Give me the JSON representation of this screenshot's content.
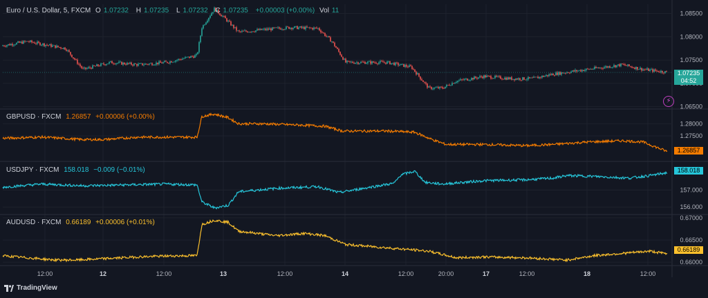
{
  "panes": [
    {
      "id": "main",
      "title": "Euro / U.S. Dollar, 5, FXCM",
      "o_label": "O",
      "o": "1.07232",
      "h_label": "H",
      "h": "1.07235",
      "l_label": "L",
      "l": "1.07232",
      "c_label": "C",
      "c": "1.07235",
      "change": "+0.00003 (+0.00%)",
      "vol_label": "Vol",
      "vol": "11",
      "last_price": "1.07235",
      "countdown": "04:52",
      "color": "#26a69a"
    },
    {
      "id": "gbpusd",
      "title": "GBPUSD · FXCM",
      "value": "1.26857",
      "change": "+0.00006 (+0.00%)",
      "last_price": "1.26857",
      "color": "#f57c00"
    },
    {
      "id": "usdjpy",
      "title": "USDJPY · FXCM",
      "value": "158.018",
      "change": "−0.009 (−0.01%)",
      "last_price": "158.018",
      "color": "#26c6da"
    },
    {
      "id": "audusd",
      "title": "AUDUSD · FXCM",
      "value": "0.66189",
      "change": "+0.00006 (+0.01%)",
      "last_price": "0.66189",
      "color": "#fbc02d"
    }
  ],
  "brand": "TradingView",
  "chart_data": [
    {
      "type": "candlestick",
      "pane": "main",
      "series_name": "EURUSD",
      "y_ticks": [
        1.085,
        1.08,
        1.075,
        1.07,
        1.065
      ],
      "y_tick_labels": [
        "1.08500",
        "1.08000",
        "1.07500",
        "1.07000",
        "1.06500"
      ],
      "ylim": [
        1.0645,
        1.087
      ],
      "keypoints": [
        [
          0,
          1.078
        ],
        [
          40,
          1.079
        ],
        [
          95,
          1.0775
        ],
        [
          120,
          1.073
        ],
        [
          160,
          1.0745
        ],
        [
          200,
          1.074
        ],
        [
          240,
          1.0745
        ],
        [
          285,
          1.076
        ],
        [
          292,
          1.082
        ],
        [
          310,
          1.086
        ],
        [
          325,
          1.084
        ],
        [
          345,
          1.081
        ],
        [
          380,
          1.0815
        ],
        [
          420,
          1.082
        ],
        [
          460,
          1.0818
        ],
        [
          480,
          1.079
        ],
        [
          500,
          1.0745
        ],
        [
          560,
          1.0745
        ],
        [
          595,
          1.0735
        ],
        [
          620,
          1.069
        ],
        [
          640,
          1.069
        ],
        [
          660,
          1.0705
        ],
        [
          700,
          1.0715
        ],
        [
          740,
          1.071
        ],
        [
          770,
          1.071
        ],
        [
          800,
          1.072
        ],
        [
          850,
          1.073
        ],
        [
          900,
          1.074
        ],
        [
          930,
          1.073
        ],
        [
          965,
          1.0724
        ]
      ]
    },
    {
      "type": "line",
      "pane": "gbpusd",
      "series_name": "GBPUSD",
      "y_ticks": [
        1.28,
        1.275
      ],
      "y_tick_labels": [
        "1.28000",
        "1.27500"
      ],
      "ylim": [
        1.2648,
        1.2855
      ],
      "keypoints": [
        [
          0,
          1.274
        ],
        [
          60,
          1.2745
        ],
        [
          120,
          1.2735
        ],
        [
          150,
          1.2735
        ],
        [
          200,
          1.2745
        ],
        [
          250,
          1.2745
        ],
        [
          285,
          1.2745
        ],
        [
          292,
          1.283
        ],
        [
          310,
          1.284
        ],
        [
          330,
          1.2825
        ],
        [
          345,
          1.28
        ],
        [
          380,
          1.28
        ],
        [
          430,
          1.2795
        ],
        [
          470,
          1.279
        ],
        [
          495,
          1.277
        ],
        [
          560,
          1.277
        ],
        [
          600,
          1.2765
        ],
        [
          625,
          1.2735
        ],
        [
          645,
          1.2715
        ],
        [
          700,
          1.2715
        ],
        [
          760,
          1.271
        ],
        [
          800,
          1.2715
        ],
        [
          850,
          1.2725
        ],
        [
          900,
          1.273
        ],
        [
          930,
          1.2725
        ],
        [
          965,
          1.2686
        ]
      ]
    },
    {
      "type": "line",
      "pane": "usdjpy",
      "series_name": "USDJPY",
      "y_ticks": [
        157.0,
        156.0
      ],
      "y_tick_labels": [
        "157.000",
        "156.000"
      ],
      "ylim": [
        155.6,
        158.6
      ],
      "keypoints": [
        [
          0,
          157.15
        ],
        [
          60,
          157.35
        ],
        [
          120,
          157.25
        ],
        [
          180,
          157.3
        ],
        [
          240,
          157.35
        ],
        [
          285,
          157.3
        ],
        [
          292,
          156.3
        ],
        [
          310,
          155.95
        ],
        [
          330,
          156.1
        ],
        [
          345,
          156.9
        ],
        [
          400,
          157.1
        ],
        [
          460,
          157.2
        ],
        [
          490,
          156.85
        ],
        [
          540,
          157.2
        ],
        [
          570,
          157.4
        ],
        [
          580,
          157.9
        ],
        [
          600,
          158.1
        ],
        [
          615,
          157.45
        ],
        [
          640,
          157.35
        ],
        [
          700,
          157.55
        ],
        [
          760,
          157.6
        ],
        [
          800,
          157.7
        ],
        [
          820,
          157.85
        ],
        [
          860,
          157.8
        ],
        [
          910,
          157.7
        ],
        [
          940,
          157.85
        ],
        [
          965,
          158.02
        ]
      ]
    },
    {
      "type": "line",
      "pane": "audusd",
      "series_name": "AUDUSD",
      "y_ticks": [
        0.67,
        0.665,
        0.66
      ],
      "y_tick_labels": [
        "0.67000",
        "0.66500",
        "0.66000"
      ],
      "ylim": [
        0.6594,
        0.6706
      ],
      "keypoints": [
        [
          0,
          0.6615
        ],
        [
          40,
          0.661
        ],
        [
          80,
          0.6605
        ],
        [
          110,
          0.6605
        ],
        [
          150,
          0.6608
        ],
        [
          200,
          0.6612
        ],
        [
          240,
          0.6614
        ],
        [
          285,
          0.6615
        ],
        [
          292,
          0.6685
        ],
        [
          310,
          0.6695
        ],
        [
          330,
          0.669
        ],
        [
          345,
          0.667
        ],
        [
          400,
          0.666
        ],
        [
          440,
          0.6665
        ],
        [
          470,
          0.666
        ],
        [
          500,
          0.664
        ],
        [
          540,
          0.6635
        ],
        [
          580,
          0.663
        ],
        [
          620,
          0.6625
        ],
        [
          660,
          0.661
        ],
        [
          700,
          0.6612
        ],
        [
          760,
          0.661
        ],
        [
          820,
          0.6605
        ],
        [
          860,
          0.6615
        ],
        [
          900,
          0.662
        ],
        [
          940,
          0.6625
        ],
        [
          965,
          0.6619
        ]
      ]
    }
  ],
  "x_axis": {
    "labels": [
      {
        "x": 65,
        "text": "12:00",
        "bold": false
      },
      {
        "x": 149,
        "text": "12",
        "bold": true
      },
      {
        "x": 237,
        "text": "12:00",
        "bold": false
      },
      {
        "x": 323,
        "text": "13",
        "bold": true
      },
      {
        "x": 412,
        "text": "12:00",
        "bold": false
      },
      {
        "x": 499,
        "text": "14",
        "bold": true
      },
      {
        "x": 587,
        "text": "12:00",
        "bold": false
      },
      {
        "x": 645,
        "text": "20:00",
        "bold": false
      },
      {
        "x": 703,
        "text": "17",
        "bold": true
      },
      {
        "x": 762,
        "text": "12:00",
        "bold": false
      },
      {
        "x": 849,
        "text": "18",
        "bold": true
      },
      {
        "x": 937,
        "text": "12:00",
        "bold": false
      }
    ]
  }
}
